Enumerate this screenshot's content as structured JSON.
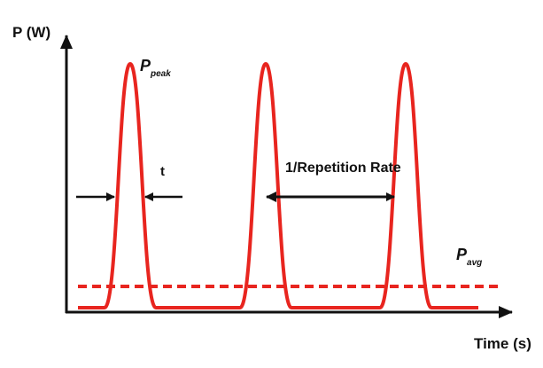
{
  "axes": {
    "y_label": "P (W)",
    "x_label": "Time (s)"
  },
  "labels": {
    "peak": {
      "symbol": "P",
      "subscript": "peak"
    },
    "pulse_width": "t",
    "period": "1/Repetition Rate",
    "average": {
      "symbol": "P",
      "subscript": "avg"
    }
  }
}
